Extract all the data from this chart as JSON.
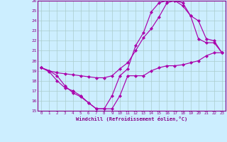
{
  "xlabel": "Windchill (Refroidissement éolien,°C)",
  "xlim": [
    -0.5,
    23.5
  ],
  "ylim": [
    15,
    26
  ],
  "xticks": [
    0,
    1,
    2,
    3,
    4,
    5,
    6,
    7,
    8,
    9,
    10,
    11,
    12,
    13,
    14,
    15,
    16,
    17,
    18,
    19,
    20,
    21,
    22,
    23
  ],
  "yticks": [
    15,
    16,
    17,
    18,
    19,
    20,
    21,
    22,
    23,
    24,
    25,
    26
  ],
  "bg_color": "#cceeff",
  "line_color": "#aa00aa",
  "grid_color": "#aacccc",
  "lines": [
    {
      "x": [
        0,
        1,
        2,
        3,
        4,
        5,
        6,
        7,
        8,
        9,
        10,
        11,
        12,
        13,
        14,
        15,
        16,
        17,
        18,
        19,
        20,
        21,
        22,
        23
      ],
      "y": [
        19.3,
        18.9,
        18.0,
        17.3,
        17.0,
        16.5,
        15.8,
        15.2,
        15.2,
        15.2,
        16.5,
        18.5,
        18.5,
        18.5,
        19.0,
        19.3,
        19.5,
        19.5,
        19.6,
        19.8,
        20.0,
        20.5,
        20.8,
        20.8
      ]
    },
    {
      "x": [
        0,
        1,
        2,
        3,
        4,
        5,
        6,
        7,
        8,
        9,
        10,
        11,
        12,
        13,
        14,
        15,
        16,
        17,
        18,
        19,
        20,
        21,
        22,
        23
      ],
      "y": [
        19.3,
        19.0,
        18.8,
        18.7,
        18.6,
        18.5,
        18.4,
        18.3,
        18.3,
        18.5,
        19.2,
        19.8,
        21.0,
        22.3,
        23.2,
        24.4,
        25.8,
        26.0,
        25.8,
        24.5,
        24.0,
        22.2,
        22.0,
        20.8
      ]
    },
    {
      "x": [
        0,
        1,
        2,
        3,
        4,
        5,
        6,
        7,
        8,
        9,
        10,
        11,
        12,
        13,
        14,
        15,
        16,
        17,
        18,
        19,
        20,
        21,
        22,
        23
      ],
      "y": [
        19.3,
        19.0,
        18.5,
        17.5,
        16.8,
        16.4,
        15.8,
        15.2,
        15.2,
        16.5,
        18.5,
        19.2,
        21.5,
        22.8,
        24.9,
        25.8,
        26.0,
        26.0,
        25.5,
        24.5,
        22.2,
        21.8,
        21.8,
        20.8
      ]
    }
  ]
}
